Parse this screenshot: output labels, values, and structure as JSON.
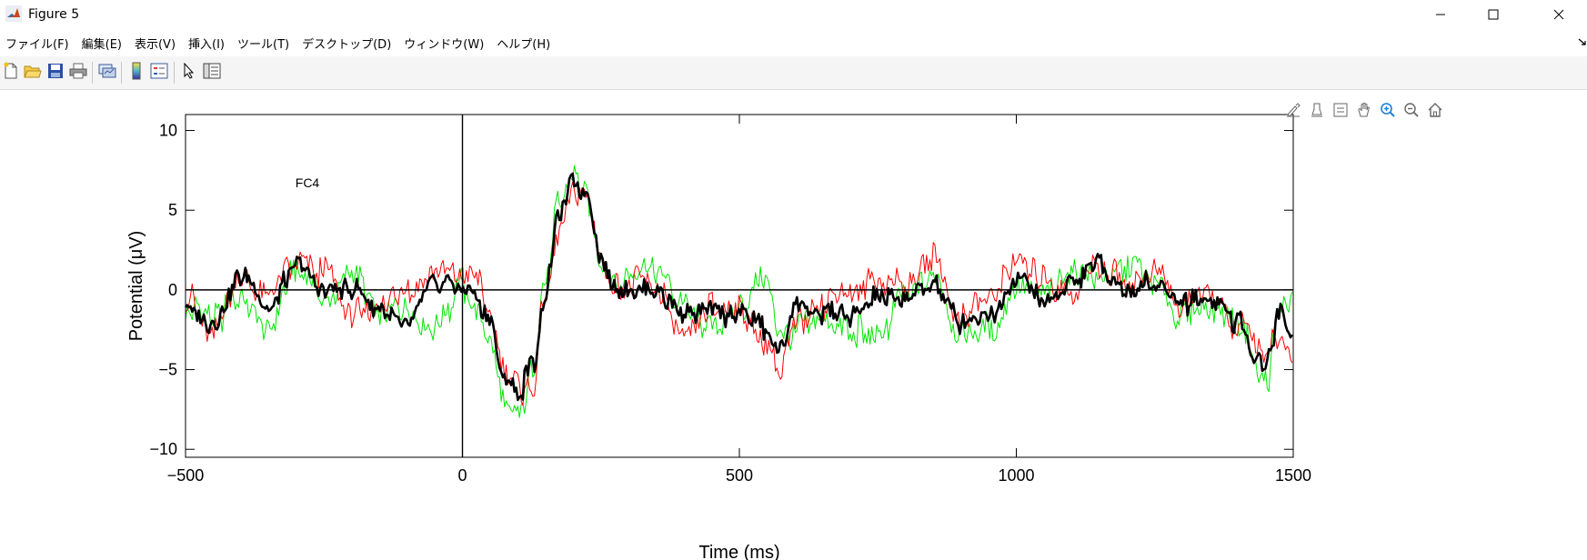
{
  "window": {
    "title": "Figure 5",
    "icon": "matlab-logo-icon",
    "controls": [
      "minimize-icon",
      "maximize-icon",
      "close-icon"
    ]
  },
  "menu": {
    "items": [
      {
        "label": "ファイル(F)"
      },
      {
        "label": "編集(E)"
      },
      {
        "label": "表示(V)"
      },
      {
        "label": "挿入(I)"
      },
      {
        "label": "ツール(T)"
      },
      {
        "label": "デスクトップ(D)"
      },
      {
        "label": "ウィンドウ(W)"
      },
      {
        "label": "ヘルプ(H)"
      }
    ]
  },
  "toolbar": {
    "buttons": [
      "new-figure-icon",
      "open-file-icon",
      "save-icon",
      "print-icon",
      "link-plot-icon",
      "colorbar-icon",
      "legend-icon",
      "edit-plot-icon",
      "property-inspector-icon"
    ]
  },
  "axes_toolbar": {
    "buttons": [
      "brush-icon",
      "data-tips-icon",
      "insert-legend-icon",
      "pan-icon",
      "zoom-in-icon",
      "zoom-out-icon",
      "restore-view-icon"
    ]
  },
  "colors": {
    "black_series": "#000000",
    "red_series": "#ff0000",
    "green_series": "#00e600",
    "zoom_accent": "#1e7fd6"
  },
  "chart_data": {
    "type": "line",
    "annotation": "FC4",
    "xlabel": "Time (ms)",
    "ylabel": "Potential (μV)",
    "xlim": [
      -500,
      1500
    ],
    "ylim": [
      -10.5,
      11
    ],
    "xticks": [
      -500,
      0,
      500,
      1000,
      1500
    ],
    "yticks": [
      -10,
      -5,
      0,
      5,
      10
    ],
    "reference_lines": {
      "x": 0,
      "y": 0
    },
    "grid": false,
    "series": [
      {
        "color": "#00e600",
        "width": 1,
        "x": [
          -500,
          -450,
          -400,
          -350,
          -300,
          -250,
          -200,
          -150,
          -100,
          -50,
          0,
          25,
          50,
          75,
          100,
          125,
          150,
          175,
          200,
          225,
          250,
          275,
          300,
          350,
          400,
          450,
          500,
          550,
          575,
          600,
          650,
          700,
          750,
          800,
          850,
          900,
          950,
          1000,
          1050,
          1100,
          1150,
          1200,
          1250,
          1300,
          1350,
          1400,
          1450,
          1475,
          1500
        ],
        "y": [
          -1.0,
          -1.8,
          -0.5,
          -2.8,
          1.5,
          -0.5,
          1.2,
          -1.5,
          -0.8,
          -2.5,
          0.3,
          -1.5,
          -3.0,
          -7.0,
          -8.0,
          -5.5,
          0.5,
          5.5,
          7.8,
          6.0,
          1.5,
          0.5,
          0.5,
          1.5,
          -1.0,
          -2.5,
          -1.0,
          0.5,
          -3.0,
          -2.5,
          -2.0,
          -2.5,
          -3.0,
          -0.5,
          0.8,
          -3.0,
          -2.5,
          0.0,
          -0.5,
          1.0,
          0.8,
          1.5,
          0.5,
          -1.5,
          -1.0,
          -2.0,
          -5.8,
          -1.5,
          -1.0
        ]
      },
      {
        "color": "#ff0000",
        "width": 1,
        "x": [
          -500,
          -450,
          -400,
          -350,
          -300,
          -250,
          -200,
          -150,
          -100,
          -50,
          0,
          25,
          50,
          75,
          100,
          125,
          150,
          175,
          200,
          225,
          250,
          275,
          300,
          350,
          400,
          450,
          500,
          550,
          575,
          600,
          650,
          700,
          750,
          800,
          850,
          900,
          950,
          1000,
          1050,
          1100,
          1150,
          1200,
          1250,
          1300,
          1350,
          1400,
          1450,
          1475,
          1500
        ],
        "y": [
          -0.5,
          -2.5,
          1.0,
          -0.5,
          1.5,
          1.0,
          -1.5,
          -1.0,
          0.0,
          0.8,
          0.8,
          1.2,
          -2.0,
          -5.0,
          -6.0,
          -6.5,
          0.0,
          4.0,
          6.5,
          6.0,
          2.0,
          0.0,
          0.5,
          0.0,
          -3.0,
          -1.0,
          -1.5,
          -3.5,
          -5.0,
          -2.0,
          -1.0,
          0.0,
          0.5,
          0.5,
          1.8,
          -1.5,
          -0.5,
          1.5,
          0.5,
          0.0,
          1.5,
          0.5,
          1.0,
          -1.0,
          0.0,
          -2.5,
          -4.0,
          -3.0,
          -4.2
        ]
      },
      {
        "color": "#000000",
        "width": 2.6,
        "x": [
          -500,
          -450,
          -400,
          -350,
          -300,
          -250,
          -200,
          -150,
          -100,
          -50,
          0,
          25,
          50,
          75,
          100,
          125,
          150,
          175,
          200,
          225,
          250,
          275,
          300,
          350,
          400,
          450,
          500,
          550,
          575,
          600,
          650,
          700,
          750,
          800,
          850,
          900,
          950,
          1000,
          1050,
          1100,
          1150,
          1200,
          1250,
          1300,
          1350,
          1400,
          1450,
          1475,
          1500
        ],
        "y": [
          -1.2,
          -2.0,
          0.8,
          -1.0,
          1.6,
          0.0,
          0.0,
          -1.2,
          -2.5,
          0.5,
          0.2,
          -0.5,
          -2.0,
          -5.5,
          -6.5,
          -5.0,
          0.0,
          4.5,
          7.0,
          6.0,
          2.0,
          0.0,
          0.0,
          0.0,
          -1.5,
          -1.5,
          -1.5,
          -2.5,
          -3.8,
          -1.0,
          -1.5,
          -1.5,
          -0.5,
          -0.5,
          0.5,
          -2.0,
          -1.5,
          0.5,
          -0.5,
          0.5,
          1.6,
          0.0,
          0.5,
          -0.8,
          -0.5,
          -2.0,
          -4.8,
          -1.5,
          -3.0
        ]
      }
    ]
  }
}
